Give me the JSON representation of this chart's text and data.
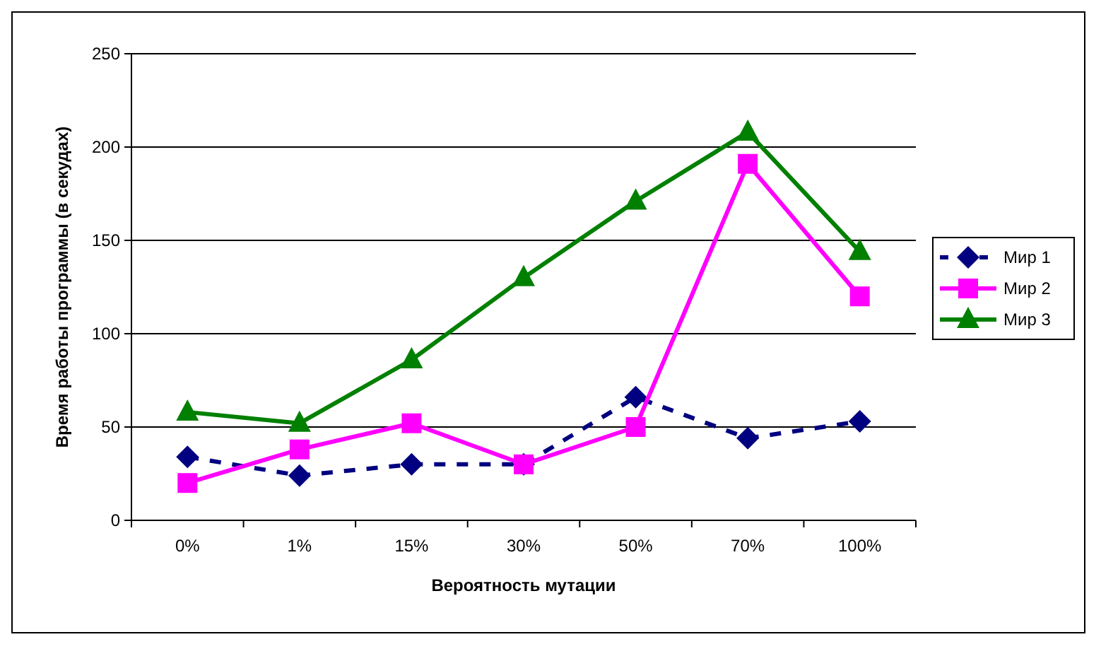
{
  "chart_data": {
    "type": "line",
    "xlabel": "Вероятность мутации",
    "ylabel": "Время работы программы (в секудах)",
    "categories": [
      "0%",
      "1%",
      "15%",
      "30%",
      "50%",
      "70%",
      "100%"
    ],
    "series": [
      {
        "name": "Мир 1",
        "color": "#000080",
        "values": [
          34,
          24,
          30,
          30,
          66,
          44,
          53
        ],
        "marker": "diamond",
        "line_style": "dashed"
      },
      {
        "name": "Мир 2",
        "color": "#ff00ff",
        "values": [
          20,
          38,
          52,
          30,
          50,
          191,
          120
        ],
        "marker": "square",
        "line_style": "solid"
      },
      {
        "name": "Мир 3",
        "color": "#008000",
        "values": [
          58,
          52,
          86,
          130,
          171,
          208,
          144
        ],
        "marker": "triangle",
        "line_style": "solid"
      }
    ],
    "ylim": [
      0,
      250
    ],
    "yticks": [
      0,
      50,
      100,
      150,
      200,
      250
    ],
    "grid": "y",
    "legend": "right"
  }
}
